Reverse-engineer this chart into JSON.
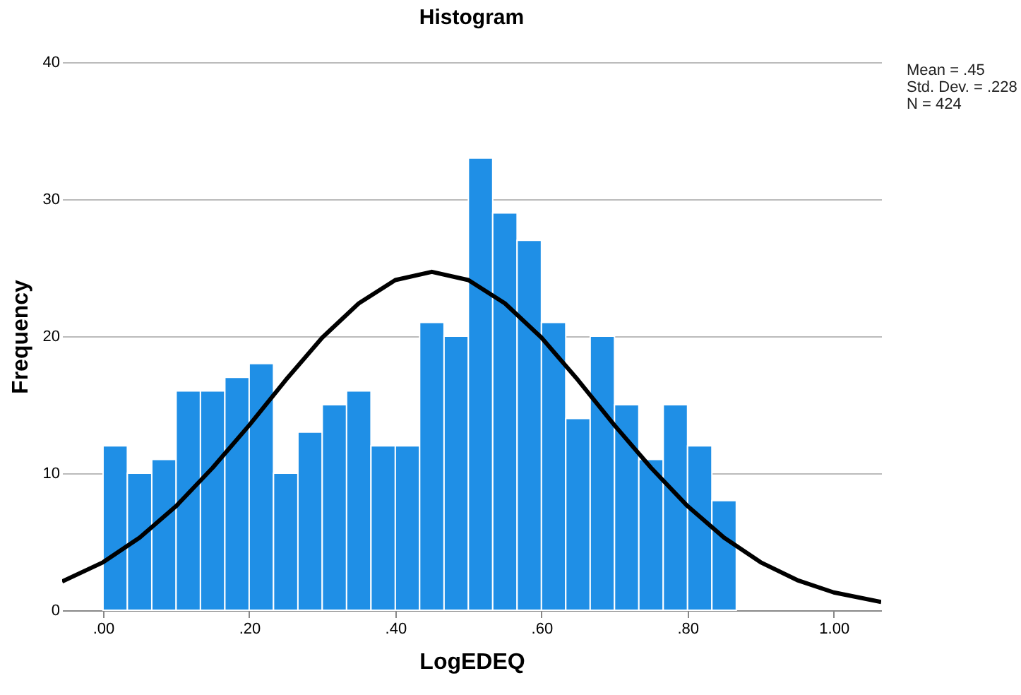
{
  "chart_data": {
    "type": "histogram",
    "title": "Histogram",
    "xlabel": "LogEDEQ",
    "ylabel": "Frequency",
    "bins": [
      0,
      0.0333,
      0.0667,
      0.1,
      0.1333,
      0.1667,
      0.2,
      0.2333,
      0.2667,
      0.3,
      0.3333,
      0.3667,
      0.4,
      0.4333,
      0.4667,
      0.5,
      0.5333,
      0.5667,
      0.6,
      0.6333,
      0.6667,
      0.7,
      0.7333,
      0.7667,
      0.8,
      0.8333,
      0.8667
    ],
    "values": [
      12,
      10,
      11,
      16,
      16,
      17,
      18,
      10,
      13,
      15,
      16,
      12,
      12,
      21,
      20,
      33,
      29,
      27,
      21,
      14,
      20,
      15,
      11,
      15,
      12,
      8
    ],
    "color": "#1f8fe6",
    "series": [
      {
        "type": "line",
        "color": "#000000",
        "x": [
          -0.056,
          0,
          0.05,
          0.1,
          0.15,
          0.2,
          0.25,
          0.3,
          0.35,
          0.4,
          0.45,
          0.5,
          0.55,
          0.6,
          0.65,
          0.7,
          0.75,
          0.8,
          0.85,
          0.9,
          0.95,
          1.0,
          1.065
        ],
        "values": [
          2.1,
          3.5,
          5.3,
          7.6,
          10.4,
          13.5,
          16.8,
          19.9,
          22.4,
          24.1,
          24.7,
          24.1,
          22.4,
          19.9,
          16.8,
          13.5,
          10.4,
          7.6,
          5.3,
          3.5,
          2.2,
          1.3,
          0.6
        ]
      }
    ],
    "xlim": [
      -0.056,
      1.065
    ],
    "ylim": [
      0,
      40
    ],
    "xticks": [
      {
        "value": 0,
        "label": ".00"
      },
      {
        "value": 0.2,
        "label": ".20"
      },
      {
        "value": 0.4,
        "label": ".40"
      },
      {
        "value": 0.6,
        "label": ".60"
      },
      {
        "value": 0.8,
        "label": ".80"
      },
      {
        "value": 1,
        "label": "1.00"
      }
    ],
    "yticks": [
      0,
      10,
      20,
      30,
      40
    ],
    "grid": "y",
    "annotations": [
      "Mean = .45",
      "Std. Dev. = .228",
      "N = 424"
    ]
  }
}
